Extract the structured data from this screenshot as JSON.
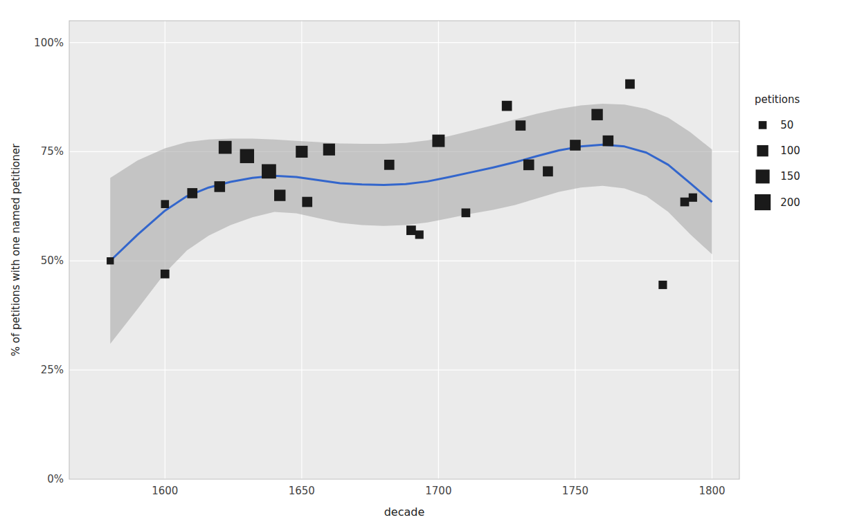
{
  "chart_data": {
    "type": "scatter",
    "x_label": "decade",
    "y_label": "% of petitions with one named petitioner",
    "xlim": [
      1565,
      1810
    ],
    "ylim": [
      0.0,
      1.05
    ],
    "xticks": [
      1600,
      1650,
      1700,
      1750,
      1800
    ],
    "yticks": [
      {
        "value": 0.0,
        "label": "0%"
      },
      {
        "value": 0.25,
        "label": "25%"
      },
      {
        "value": 0.5,
        "label": "50%"
      },
      {
        "value": 0.75,
        "label": "75%"
      },
      {
        "value": 1.0,
        "label": "100%"
      }
    ],
    "grid": true,
    "legend": "right",
    "series": [
      {
        "type": "area",
        "color": "#aaaaaa",
        "x": [
          1580,
          1590,
          1600,
          1608,
          1616,
          1624,
          1632,
          1640,
          1648,
          1656,
          1664,
          1672,
          1680,
          1688,
          1696,
          1704,
          1712,
          1720,
          1728,
          1736,
          1744,
          1752,
          1760,
          1768,
          1776,
          1784,
          1792,
          1800
        ],
        "lower": [
          0.31,
          0.39,
          0.472,
          0.524,
          0.558,
          0.582,
          0.6,
          0.612,
          0.609,
          0.598,
          0.587,
          0.582,
          0.58,
          0.582,
          0.588,
          0.598,
          0.608,
          0.617,
          0.628,
          0.643,
          0.658,
          0.668,
          0.672,
          0.666,
          0.648,
          0.612,
          0.561,
          0.515
        ],
        "upper": [
          0.69,
          0.73,
          0.758,
          0.772,
          0.778,
          0.78,
          0.78,
          0.778,
          0.775,
          0.772,
          0.769,
          0.768,
          0.768,
          0.77,
          0.776,
          0.786,
          0.798,
          0.811,
          0.824,
          0.837,
          0.848,
          0.856,
          0.86,
          0.858,
          0.848,
          0.828,
          0.795,
          0.755
        ]
      },
      {
        "type": "line",
        "color": "#3366CC",
        "x": [
          1580,
          1590,
          1600,
          1608,
          1616,
          1624,
          1632,
          1640,
          1648,
          1656,
          1664,
          1672,
          1680,
          1688,
          1696,
          1704,
          1712,
          1720,
          1728,
          1736,
          1744,
          1752,
          1760,
          1768,
          1776,
          1784,
          1792,
          1800
        ],
        "values": [
          0.5,
          0.56,
          0.615,
          0.648,
          0.668,
          0.681,
          0.69,
          0.695,
          0.692,
          0.685,
          0.678,
          0.675,
          0.674,
          0.676,
          0.682,
          0.692,
          0.703,
          0.714,
          0.726,
          0.74,
          0.753,
          0.762,
          0.766,
          0.762,
          0.748,
          0.72,
          0.678,
          0.635
        ]
      },
      {
        "type": "scatter",
        "color": "#1a1a1a",
        "marker": "square",
        "x": [
          1580,
          1600,
          1600,
          1610,
          1620,
          1622,
          1630,
          1638,
          1642,
          1650,
          1652,
          1660,
          1682,
          1690,
          1693,
          1700,
          1710,
          1725,
          1730,
          1733,
          1740,
          1750,
          1758,
          1762,
          1770,
          1782,
          1790,
          1793
        ],
        "values": [
          0.5,
          0.63,
          0.47,
          0.655,
          0.67,
          0.76,
          0.74,
          0.705,
          0.65,
          0.75,
          0.635,
          0.755,
          0.72,
          0.57,
          0.56,
          0.775,
          0.61,
          0.855,
          0.81,
          0.72,
          0.705,
          0.765,
          0.835,
          0.775,
          0.905,
          0.445,
          0.635,
          0.645
        ],
        "sizes": [
          40,
          50,
          60,
          80,
          90,
          130,
          155,
          160,
          100,
          110,
          80,
          110,
          80,
          70,
          55,
          120,
          60,
          80,
          80,
          90,
          80,
          90,
          100,
          90,
          70,
          55,
          60,
          55
        ]
      }
    ],
    "size_legend": {
      "title": "petitions",
      "sizes": [
        50,
        100,
        150,
        200
      ]
    }
  }
}
